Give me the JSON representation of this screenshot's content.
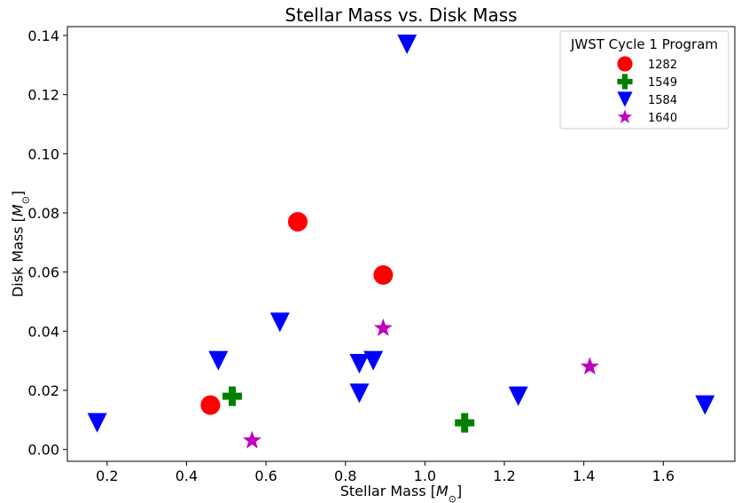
{
  "chart_data": {
    "type": "scatter",
    "title": "Stellar Mass vs. Disk Mass",
    "xlabel_text": "Stellar Mass [",
    "ylabel_text": "Disk Mass [",
    "unit_symbol": "M",
    "unit_subscript": "⊙",
    "unit_close": "]",
    "xlim": [
      0.1,
      1.78
    ],
    "ylim": [
      -0.004,
      0.143
    ],
    "xticks": [
      0.2,
      0.4,
      0.6,
      0.8,
      1.0,
      1.2,
      1.4,
      1.6
    ],
    "xtick_labels": [
      "0.2",
      "0.4",
      "0.6",
      "0.8",
      "1.0",
      "1.2",
      "1.4",
      "1.6"
    ],
    "yticks": [
      0.0,
      0.02,
      0.04,
      0.06,
      0.08,
      0.1,
      0.12,
      0.14
    ],
    "ytick_labels": [
      "0.00",
      "0.02",
      "0.04",
      "0.06",
      "0.08",
      "0.10",
      "0.12",
      "0.14"
    ],
    "grid": false,
    "legend": {
      "title": "JWST Cycle 1 Program",
      "position": "top-right"
    },
    "series": [
      {
        "name": "1282",
        "marker": "circle",
        "color": "#ff0000",
        "x": [
          0.46,
          0.68,
          0.895
        ],
        "y": [
          0.015,
          0.077,
          0.059
        ]
      },
      {
        "name": "1549",
        "marker": "plus",
        "color": "#008000",
        "x": [
          0.515,
          1.1
        ],
        "y": [
          0.018,
          0.009
        ]
      },
      {
        "name": "1584",
        "marker": "triangle-down",
        "color": "#0000ff",
        "x": [
          0.175,
          0.48,
          0.635,
          0.835,
          0.835,
          0.87,
          0.955,
          1.235,
          1.705
        ],
        "y": [
          0.009,
          0.03,
          0.043,
          0.019,
          0.029,
          0.03,
          0.137,
          0.018,
          0.015
        ]
      },
      {
        "name": "1640",
        "marker": "star",
        "color": "#bf00bf",
        "x": [
          0.565,
          0.895,
          1.415
        ],
        "y": [
          0.003,
          0.041,
          0.028
        ]
      }
    ]
  }
}
